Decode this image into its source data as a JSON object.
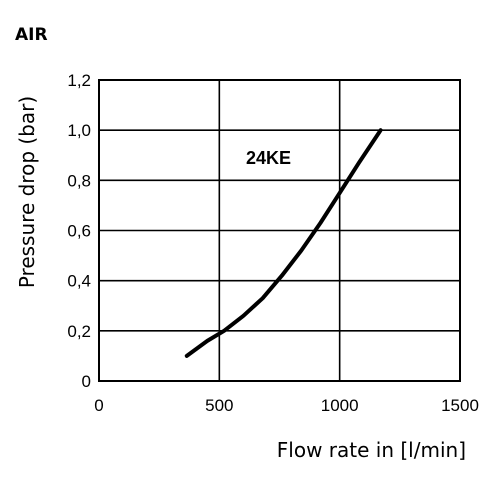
{
  "chart_data": {
    "type": "line",
    "title": "AIR",
    "xlabel": "Flow rate in [l/min]",
    "ylabel": "Pressure drop (bar)",
    "xlim": [
      0,
      1500
    ],
    "ylim": [
      0,
      1.2
    ],
    "x_ticks": [
      "0",
      "500",
      "1000",
      "1500"
    ],
    "y_ticks": [
      "0",
      "0,2",
      "0,4",
      "0,6",
      "0,8",
      "1,0",
      "1,2"
    ],
    "grid": true,
    "series": [
      {
        "name": "24KE",
        "x": [
          365,
          450,
          520,
          600,
          680,
          760,
          840,
          920,
          1000,
          1080,
          1170
        ],
        "y": [
          0.1,
          0.16,
          0.2,
          0.26,
          0.33,
          0.42,
          0.52,
          0.63,
          0.75,
          0.87,
          1.0
        ]
      }
    ],
    "colors": {
      "line": "#000000",
      "grid": "#000000",
      "background": "#ffffff"
    }
  }
}
